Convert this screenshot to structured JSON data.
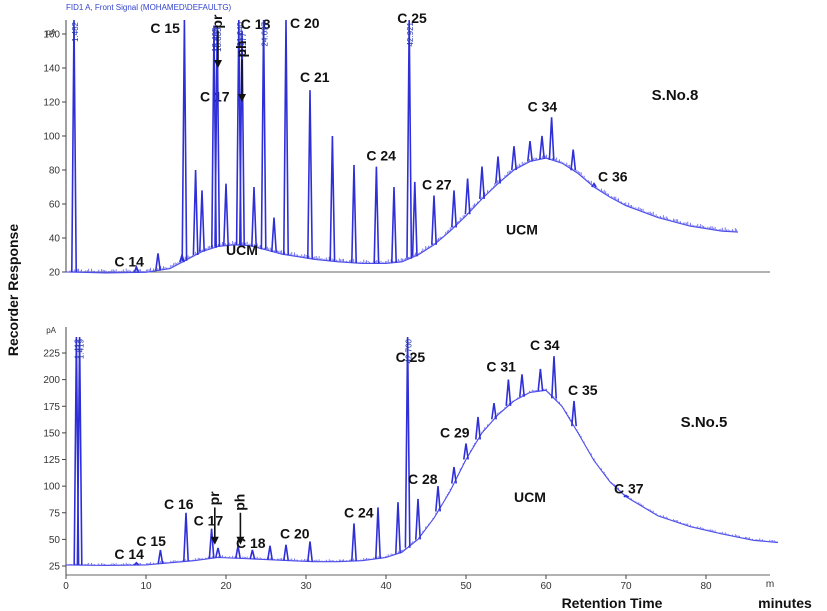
{
  "chart_data": {
    "type": "line",
    "xlabel": "Retention Time",
    "xunit": "minutes",
    "ylabel": "Recorder Response",
    "x_ticks": [
      "0",
      "10",
      "20",
      "30",
      "40",
      "50",
      "60",
      "70",
      "80"
    ],
    "x_end_label": "m",
    "panels": [
      {
        "sample": "S.No.8",
        "signal_label": "FID1 A, Front Signal (MOHAMED\\DEFAULTG)",
        "yunit": "pA",
        "yrange": [
          20,
          170
        ],
        "y_ticks": [
          "20",
          "40",
          "60",
          "80",
          "100",
          "120",
          "140",
          "160"
        ],
        "ucm_label": "UCM",
        "ucm_labels": [
          {
            "text": "UCM",
            "x": 22,
            "y": 30
          },
          {
            "text": "UCM",
            "x": 57,
            "y": 42
          }
        ],
        "baseline": [
          [
            0,
            20
          ],
          [
            5,
            19.5
          ],
          [
            10,
            19.8
          ],
          [
            13,
            22
          ],
          [
            15,
            27
          ],
          [
            17,
            32
          ],
          [
            19,
            35
          ],
          [
            21,
            36
          ],
          [
            23,
            35.5
          ],
          [
            25,
            33
          ],
          [
            27,
            30.5
          ],
          [
            29,
            29
          ],
          [
            31,
            27.5
          ],
          [
            34,
            26
          ],
          [
            37,
            25
          ],
          [
            40,
            25
          ],
          [
            42,
            26
          ],
          [
            44,
            30
          ],
          [
            46,
            36
          ],
          [
            48,
            44
          ],
          [
            50,
            53
          ],
          [
            52,
            63
          ],
          [
            54,
            72
          ],
          [
            56,
            80
          ],
          [
            58,
            85
          ],
          [
            60,
            87
          ],
          [
            62,
            84
          ],
          [
            64,
            78
          ],
          [
            66,
            70
          ],
          [
            68,
            64
          ],
          [
            70,
            59
          ],
          [
            74,
            52
          ],
          [
            78,
            47
          ],
          [
            82,
            44
          ],
          [
            84,
            43.5
          ]
        ],
        "peaks": [
          {
            "x": 1.0,
            "y": 170,
            "rt": "1.482"
          },
          {
            "x": 8.8,
            "y": 23,
            "label": "C 14"
          },
          {
            "x": 11.5,
            "y": 31
          },
          {
            "x": 14.5,
            "y": 30
          },
          {
            "x": 14.8,
            "y": 170,
            "label": "C 15"
          },
          {
            "x": 16.2,
            "y": 80
          },
          {
            "x": 17.0,
            "y": 68
          },
          {
            "x": 18.5,
            "y": 165,
            "label": "C 17",
            "rt": "18.405"
          },
          {
            "x": 18.9,
            "y": 165,
            "rt": "18.835"
          },
          {
            "x": 20.0,
            "y": 72
          },
          {
            "x": 21.6,
            "y": 170,
            "label": "C 18",
            "rt": "21.640"
          },
          {
            "x": 22.0,
            "y": 162,
            "rt": "21.977"
          },
          {
            "x": 23.5,
            "y": 70
          },
          {
            "x": 24.7,
            "y": 170,
            "rt": "24.697"
          },
          {
            "x": 26.0,
            "y": 52
          },
          {
            "x": 27.5,
            "y": 170,
            "label": "C 20"
          },
          {
            "x": 30.5,
            "y": 127,
            "label": "C 21"
          },
          {
            "x": 33.3,
            "y": 100
          },
          {
            "x": 36.0,
            "y": 83
          },
          {
            "x": 38.8,
            "y": 82,
            "label": "C 24"
          },
          {
            "x": 41.0,
            "y": 70
          },
          {
            "x": 42.9,
            "y": 170,
            "label": "C 25",
            "rt": "42.921"
          },
          {
            "x": 43.6,
            "y": 73
          },
          {
            "x": 46.0,
            "y": 65,
            "label": "C 27"
          },
          {
            "x": 48.5,
            "y": 68
          },
          {
            "x": 50.2,
            "y": 75
          },
          {
            "x": 52.0,
            "y": 82
          },
          {
            "x": 54.0,
            "y": 88
          },
          {
            "x": 56.0,
            "y": 94
          },
          {
            "x": 58.0,
            "y": 97
          },
          {
            "x": 59.5,
            "y": 100
          },
          {
            "x": 60.7,
            "y": 111,
            "label": "C 34"
          },
          {
            "x": 63.4,
            "y": 92
          },
          {
            "x": 66.0,
            "y": 72,
            "label": "C 36"
          }
        ],
        "arrows": [
          {
            "text": "pr",
            "x": 19.0,
            "y_from": 162,
            "y_to": 140
          },
          {
            "text": "ph",
            "x": 22.0,
            "y_from": 145,
            "y_to": 120
          }
        ]
      },
      {
        "sample": "S.No.5",
        "signal_label": "",
        "yunit": "pA",
        "yrange": [
          20,
          240
        ],
        "y_ticks": [
          "25",
          "50",
          "75",
          "100",
          "125",
          "150",
          "175",
          "200",
          "225"
        ],
        "ucm_label": "UCM",
        "ucm_labels": [
          {
            "text": "UCM",
            "x": 58,
            "y": 85
          }
        ],
        "baseline": [
          [
            0,
            26
          ],
          [
            5,
            25.5
          ],
          [
            10,
            26
          ],
          [
            13,
            28
          ],
          [
            16,
            30
          ],
          [
            19,
            33
          ],
          [
            22,
            32
          ],
          [
            25,
            31
          ],
          [
            28,
            30
          ],
          [
            31,
            29
          ],
          [
            34,
            29
          ],
          [
            37,
            30
          ],
          [
            40,
            33
          ],
          [
            42,
            38
          ],
          [
            44,
            50
          ],
          [
            46,
            70
          ],
          [
            48,
            95
          ],
          [
            50,
            125
          ],
          [
            52,
            150
          ],
          [
            54,
            167
          ],
          [
            56,
            180
          ],
          [
            58,
            188
          ],
          [
            60,
            190
          ],
          [
            62,
            175
          ],
          [
            64,
            150
          ],
          [
            66,
            124
          ],
          [
            68,
            104
          ],
          [
            70,
            90
          ],
          [
            74,
            72
          ],
          [
            78,
            62
          ],
          [
            82,
            55
          ],
          [
            86,
            49
          ],
          [
            89,
            47
          ]
        ],
        "peaks": [
          {
            "x": 1.3,
            "y": 240,
            "rt": "1.412"
          },
          {
            "x": 1.7,
            "y": 240,
            "rt": "1.419"
          },
          {
            "x": 8.8,
            "y": 28,
            "label": "C 14"
          },
          {
            "x": 11.8,
            "y": 40,
            "label": "C 15"
          },
          {
            "x": 15.0,
            "y": 75,
            "label": "C 16"
          },
          {
            "x": 18.2,
            "y": 60,
            "label": "C 17"
          },
          {
            "x": 19.0,
            "y": 42
          },
          {
            "x": 21.5,
            "y": 44,
            "label": "C 18"
          },
          {
            "x": 23.3,
            "y": 40
          },
          {
            "x": 25.5,
            "y": 44
          },
          {
            "x": 27.5,
            "y": 45,
            "label": "C 20"
          },
          {
            "x": 30.5,
            "y": 48
          },
          {
            "x": 36.0,
            "y": 65,
            "label": "C 24"
          },
          {
            "x": 39.0,
            "y": 80
          },
          {
            "x": 41.5,
            "y": 85
          },
          {
            "x": 42.7,
            "y": 240,
            "label": "C 25",
            "rt": "42.700"
          },
          {
            "x": 44.0,
            "y": 88
          },
          {
            "x": 46.5,
            "y": 100,
            "label": "C 28"
          },
          {
            "x": 48.5,
            "y": 118
          },
          {
            "x": 50.0,
            "y": 140,
            "label": "C 29"
          },
          {
            "x": 51.5,
            "y": 165
          },
          {
            "x": 53.5,
            "y": 178
          },
          {
            "x": 55.3,
            "y": 200,
            "label": "C 31"
          },
          {
            "x": 57.0,
            "y": 205
          },
          {
            "x": 59.3,
            "y": 210
          },
          {
            "x": 61.0,
            "y": 222,
            "label": "C 34"
          },
          {
            "x": 63.5,
            "y": 180,
            "label": "C 35"
          },
          {
            "x": 70.0,
            "y": 91,
            "label": "C 37"
          }
        ],
        "arrows": [
          {
            "text": "pr",
            "x": 18.6,
            "y_from": 80,
            "y_to": 45
          },
          {
            "text": "ph",
            "x": 21.8,
            "y_from": 75,
            "y_to": 45
          }
        ]
      }
    ]
  }
}
